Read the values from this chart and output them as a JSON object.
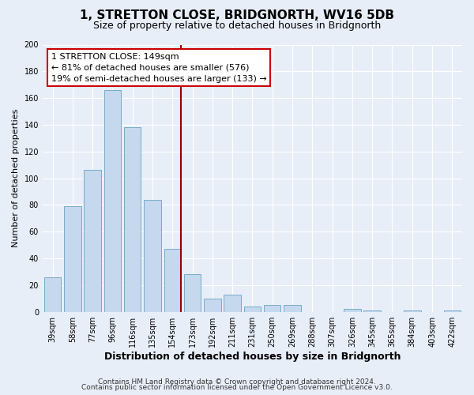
{
  "title": "1, STRETTON CLOSE, BRIDGNORTH, WV16 5DB",
  "subtitle": "Size of property relative to detached houses in Bridgnorth",
  "xlabel": "Distribution of detached houses by size in Bridgnorth",
  "ylabel": "Number of detached properties",
  "bar_labels": [
    "39sqm",
    "58sqm",
    "77sqm",
    "96sqm",
    "116sqm",
    "135sqm",
    "154sqm",
    "173sqm",
    "192sqm",
    "211sqm",
    "231sqm",
    "250sqm",
    "269sqm",
    "288sqm",
    "307sqm",
    "326sqm",
    "345sqm",
    "365sqm",
    "384sqm",
    "403sqm",
    "422sqm"
  ],
  "bar_values": [
    26,
    79,
    106,
    166,
    138,
    84,
    47,
    28,
    10,
    13,
    4,
    5,
    5,
    0,
    0,
    2,
    1,
    0,
    1,
    0,
    1
  ],
  "bar_color": "#c5d8ee",
  "bar_edge_color": "#7aaac8",
  "vline_index": 6,
  "vline_color": "#990000",
  "annotation_title": "1 STRETTON CLOSE: 149sqm",
  "annotation_line1": "← 81% of detached houses are smaller (576)",
  "annotation_line2": "19% of semi-detached houses are larger (133) →",
  "annotation_box_facecolor": "#ffffff",
  "annotation_box_edgecolor": "#cc0000",
  "ylim": [
    0,
    200
  ],
  "yticks": [
    0,
    20,
    40,
    60,
    80,
    100,
    120,
    140,
    160,
    180,
    200
  ],
  "footer_line1": "Contains HM Land Registry data © Crown copyright and database right 2024.",
  "footer_line2": "Contains public sector information licensed under the Open Government Licence v3.0.",
  "bg_color": "#e8eef8",
  "plot_bg_color": "#e8eef8",
  "grid_color": "#ffffff",
  "title_fontsize": 11,
  "subtitle_fontsize": 9,
  "xlabel_fontsize": 9,
  "ylabel_fontsize": 8,
  "tick_fontsize": 7,
  "annotation_fontsize": 8,
  "footer_fontsize": 6.5
}
